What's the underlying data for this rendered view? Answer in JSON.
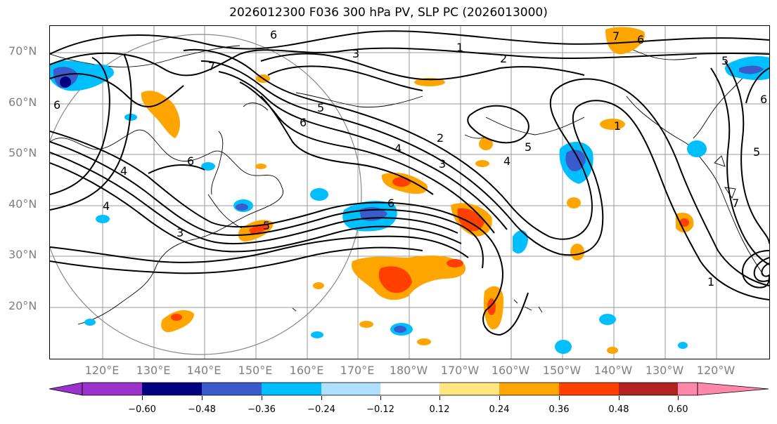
{
  "title": "2026012300 F036 300 hPa PV, SLP PC (2026013000)",
  "lat_labels": [
    "70°N",
    "60°N",
    "50°N",
    "40°N",
    "30°N",
    "20°N"
  ],
  "lon_labels": [
    "120°E",
    "130°E",
    "140°E",
    "150°E",
    "160°E",
    "170°E",
    "180°W",
    "170°W",
    "160°W",
    "150°W",
    "140°W",
    "130°W",
    "120°W"
  ],
  "colorbar": {
    "ticks": [
      "−0.60",
      "−0.48",
      "−0.36",
      "−0.24",
      "−0.12",
      "0.12",
      "0.24",
      "0.36",
      "0.48",
      "0.60"
    ],
    "colors": [
      "#9933cc",
      "#000080",
      "#3a5bcc",
      "#00bfff",
      "#b0e0ff",
      "#ffffff",
      "#ffe680",
      "#ffa500",
      "#ff4000",
      "#b22222",
      "#ff88aa"
    ]
  },
  "contour_labels": [
    "7",
    "6",
    "1",
    "2",
    "3",
    "4",
    "5",
    "6",
    "7",
    "1",
    "2",
    "3",
    "4",
    "5",
    "6",
    "4",
    "6",
    "5",
    "6",
    "6",
    "7",
    "3",
    "5",
    "6",
    "1",
    "4",
    "5"
  ]
}
